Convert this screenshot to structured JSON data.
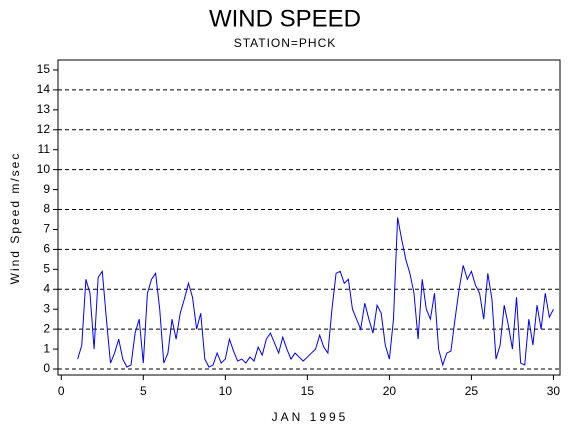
{
  "chart_data": {
    "type": "line",
    "title": "WIND SPEED",
    "subtitle": "STATION=PHCK",
    "x_label": "JAN 1995",
    "y_label": "Wind Speed m/sec",
    "xlim": [
      -0.2,
      30.4
    ],
    "ylim": [
      -0.3,
      15.5
    ],
    "xticks": [
      0,
      5,
      10,
      15,
      20,
      25,
      30
    ],
    "yticks": [
      0,
      1,
      2,
      3,
      4,
      5,
      6,
      7,
      8,
      9,
      10,
      11,
      12,
      13,
      14,
      15
    ],
    "grid": true,
    "grid_lines": [
      0,
      2,
      4,
      6,
      8,
      10,
      12,
      14
    ],
    "series": [
      {
        "color": "#0000ff",
        "x": [
          1.0,
          1.25,
          1.5,
          1.75,
          2.0,
          2.25,
          2.5,
          2.75,
          3.0,
          3.25,
          3.5,
          3.75,
          4.0,
          4.25,
          4.5,
          4.75,
          5.0,
          5.25,
          5.5,
          5.75,
          6.0,
          6.25,
          6.5,
          6.75,
          7.0,
          7.25,
          7.5,
          7.75,
          8.0,
          8.25,
          8.5,
          8.75,
          9.0,
          9.25,
          9.5,
          9.75,
          10.0,
          10.25,
          10.5,
          10.75,
          11.0,
          11.25,
          11.5,
          11.75,
          12.0,
          12.25,
          12.5,
          12.75,
          13.0,
          13.25,
          13.5,
          13.75,
          14.0,
          14.25,
          14.5,
          14.75,
          15.0,
          15.25,
          15.5,
          15.75,
          16.0,
          16.25,
          16.5,
          16.75,
          17.0,
          17.25,
          17.5,
          17.75,
          18.0,
          18.25,
          18.5,
          18.75,
          19.0,
          19.25,
          19.5,
          19.75,
          20.0,
          20.25,
          20.5,
          20.75,
          21.0,
          21.25,
          21.5,
          21.75,
          22.0,
          22.25,
          22.5,
          22.75,
          23.0,
          23.25,
          23.5,
          23.75,
          24.0,
          24.25,
          24.5,
          24.75,
          25.0,
          25.25,
          25.5,
          25.75,
          26.0,
          26.25,
          26.5,
          26.75,
          27.0,
          27.25,
          27.5,
          27.75,
          28.0,
          28.25,
          28.5,
          28.75,
          29.0,
          29.25,
          29.5,
          29.75,
          30.0
        ],
        "values": [
          0.5,
          1.2,
          4.5,
          3.8,
          1.0,
          4.6,
          4.9,
          2.5,
          0.3,
          0.8,
          1.5,
          0.5,
          0.1,
          0.2,
          1.8,
          2.5,
          0.3,
          3.8,
          4.5,
          4.8,
          3.0,
          0.3,
          0.8,
          2.5,
          1.5,
          2.8,
          3.5,
          4.3,
          3.6,
          2.0,
          2.8,
          0.5,
          0.1,
          0.2,
          0.8,
          0.3,
          0.5,
          1.5,
          0.9,
          0.4,
          0.5,
          0.3,
          0.6,
          0.4,
          1.1,
          0.7,
          1.5,
          1.8,
          1.3,
          0.8,
          1.6,
          1.0,
          0.5,
          0.8,
          0.6,
          0.4,
          0.6,
          0.8,
          1.0,
          1.7,
          1.1,
          0.8,
          3.0,
          4.8,
          4.9,
          4.3,
          4.5,
          3.0,
          2.5,
          2.0,
          3.3,
          2.5,
          1.8,
          3.2,
          2.8,
          1.2,
          0.5,
          2.5,
          7.6,
          6.5,
          5.5,
          4.8,
          3.8,
          1.5,
          4.5,
          3.0,
          2.5,
          3.8,
          1.0,
          0.2,
          0.8,
          0.9,
          2.5,
          4.0,
          5.2,
          4.5,
          4.9,
          4.2,
          3.8,
          2.5,
          4.8,
          3.5,
          0.5,
          1.2,
          3.2,
          2.2,
          1.0,
          3.6,
          0.3,
          0.2,
          2.5,
          1.2,
          3.2,
          2.0,
          3.8,
          2.6,
          3.0
        ]
      }
    ]
  }
}
